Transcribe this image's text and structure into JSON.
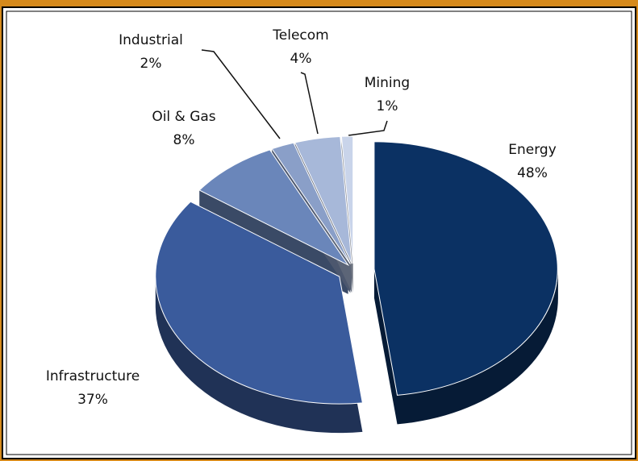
{
  "chart_data": {
    "type": "pie",
    "categories": [
      "Energy",
      "Infrastructure",
      "Oil & Gas",
      "Industrial",
      "Telecom",
      "Mining"
    ],
    "values": [
      48,
      37,
      8,
      2,
      4,
      1
    ],
    "value_labels": [
      "48%",
      "37%",
      "8%",
      "2%",
      "4%",
      "1%"
    ],
    "colors": [
      "#0b3163",
      "#3a5b9c",
      "#6a86ba",
      "#8a9fc8",
      "#a7b8d9",
      "#c9d4ea"
    ]
  }
}
